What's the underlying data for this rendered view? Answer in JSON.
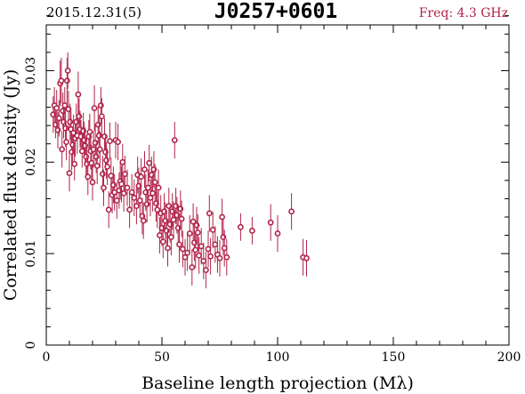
{
  "header": {
    "date": "2015.12.31(5)",
    "source": "J0257+0601",
    "frequency": "Freq: 4.3 GHz"
  },
  "colors": {
    "data": "#b0234a",
    "frame": "#000000"
  },
  "chart_data": {
    "type": "scatter",
    "title": "J0257+0601",
    "xlabel": "Baseline length projection (Mλ)",
    "ylabel": "Correlated flux density (Jy)",
    "xlim": [
      0,
      200
    ],
    "ylim": [
      0,
      0.035
    ],
    "xticks": [
      0,
      50,
      100,
      150,
      200
    ],
    "xtick_labels": [
      "0",
      "50",
      "100",
      "150",
      "200"
    ],
    "yticks": [
      0,
      0.01,
      0.02,
      0.03
    ],
    "ytick_labels": [
      "0",
      "0.01",
      "0.02",
      "0.03"
    ],
    "error_bars": true,
    "series": [
      {
        "points": [
          [
            3,
            0.0252,
            0.002
          ],
          [
            3.5,
            0.0262,
            0.002
          ],
          [
            4,
            0.0241,
            0.0015
          ],
          [
            4.5,
            0.0259,
            0.002
          ],
          [
            5,
            0.0235,
            0.002
          ],
          [
            5.5,
            0.0248,
            0.002
          ],
          [
            6,
            0.0286,
            0.0025
          ],
          [
            6.5,
            0.0289,
            0.0025
          ],
          [
            6.8,
            0.0214,
            0.002
          ],
          [
            7.2,
            0.0256,
            0.002
          ],
          [
            7.5,
            0.0244,
            0.0018
          ],
          [
            8,
            0.0262,
            0.002
          ],
          [
            8.3,
            0.0237,
            0.002
          ],
          [
            8.7,
            0.0222,
            0.002
          ],
          [
            9,
            0.0289,
            0.0025
          ],
          [
            9.3,
            0.03,
            0.002
          ],
          [
            9.6,
            0.0258,
            0.002
          ],
          [
            10,
            0.0188,
            0.002
          ],
          [
            10.3,
            0.0244,
            0.002
          ],
          [
            10.7,
            0.0236,
            0.002
          ],
          [
            11,
            0.0211,
            0.002
          ],
          [
            11.4,
            0.0219,
            0.002
          ],
          [
            11.8,
            0.0232,
            0.002
          ],
          [
            12.2,
            0.0198,
            0.0018
          ],
          [
            12.5,
            0.0226,
            0.002
          ],
          [
            13,
            0.0244,
            0.002
          ],
          [
            13.4,
            0.0229,
            0.002
          ],
          [
            13.8,
            0.0274,
            0.0025
          ],
          [
            14.2,
            0.025,
            0.002
          ],
          [
            14.6,
            0.0236,
            0.002
          ],
          [
            15,
            0.0228,
            0.0018
          ],
          [
            15.5,
            0.0212,
            0.0018
          ],
          [
            16,
            0.0234,
            0.002
          ],
          [
            16.4,
            0.0224,
            0.002
          ],
          [
            16.8,
            0.0218,
            0.002
          ],
          [
            17.2,
            0.0206,
            0.002
          ],
          [
            17.6,
            0.0198,
            0.0018
          ],
          [
            18,
            0.0184,
            0.002
          ],
          [
            18.4,
            0.0228,
            0.0018
          ],
          [
            18.8,
            0.0233,
            0.002
          ],
          [
            19.2,
            0.0212,
            0.002
          ],
          [
            19.6,
            0.0199,
            0.002
          ],
          [
            20,
            0.0178,
            0.002
          ],
          [
            20.4,
            0.0214,
            0.002
          ],
          [
            20.8,
            0.0259,
            0.0025
          ],
          [
            21.2,
            0.0221,
            0.002
          ],
          [
            21.6,
            0.0206,
            0.0018
          ],
          [
            22,
            0.0196,
            0.002
          ],
          [
            22.4,
            0.0241,
            0.002
          ],
          [
            22.8,
            0.0229,
            0.002
          ],
          [
            23.2,
            0.0214,
            0.002
          ],
          [
            23.6,
            0.0262,
            0.002
          ],
          [
            24,
            0.025,
            0.002
          ],
          [
            24.4,
            0.0187,
            0.002
          ],
          [
            24.8,
            0.0172,
            0.002
          ],
          [
            25.2,
            0.0228,
            0.002
          ],
          [
            25.6,
            0.0211,
            0.002
          ],
          [
            26,
            0.0202,
            0.002
          ],
          [
            26.4,
            0.0195,
            0.002
          ],
          [
            27,
            0.0148,
            0.002
          ],
          [
            27.5,
            0.0223,
            0.002
          ],
          [
            28,
            0.0185,
            0.002
          ],
          [
            28.5,
            0.0164,
            0.002
          ],
          [
            29,
            0.0175,
            0.002
          ],
          [
            29.5,
            0.0167,
            0.002
          ],
          [
            30,
            0.0224,
            0.002
          ],
          [
            30.5,
            0.0158,
            0.002
          ],
          [
            31,
            0.0222,
            0.002
          ],
          [
            31.5,
            0.0169,
            0.002
          ],
          [
            32,
            0.0179,
            0.002
          ],
          [
            32.5,
            0.0176,
            0.002
          ],
          [
            33,
            0.02,
            0.002
          ],
          [
            33.5,
            0.0166,
            0.002
          ],
          [
            34,
            0.0187,
            0.002
          ],
          [
            35,
            0.0172,
            0.002
          ],
          [
            36,
            0.0148,
            0.002
          ],
          [
            37,
            0.0167,
            0.002
          ],
          [
            38,
            0.0161,
            0.002
          ],
          [
            39,
            0.0152,
            0.002
          ],
          [
            39.5,
            0.0186,
            0.002
          ],
          [
            40,
            0.0174,
            0.002
          ],
          [
            40.5,
            0.0158,
            0.0018
          ],
          [
            41,
            0.0184,
            0.002
          ],
          [
            41.5,
            0.0141,
            0.002
          ],
          [
            42,
            0.0136,
            0.002
          ],
          [
            42.5,
            0.0192,
            0.002
          ],
          [
            43,
            0.0167,
            0.002
          ],
          [
            43.5,
            0.0154,
            0.002
          ],
          [
            44,
            0.0172,
            0.002
          ],
          [
            44.5,
            0.0199,
            0.002
          ],
          [
            45,
            0.0161,
            0.002
          ],
          [
            45.5,
            0.0186,
            0.002
          ],
          [
            46,
            0.0166,
            0.002
          ],
          [
            46.5,
            0.0192,
            0.002
          ],
          [
            47,
            0.0178,
            0.002
          ],
          [
            47.5,
            0.0155,
            0.002
          ],
          [
            48,
            0.0148,
            0.002
          ],
          [
            48.5,
            0.0172,
            0.002
          ],
          [
            49,
            0.012,
            0.002
          ],
          [
            49.5,
            0.0144,
            0.002
          ],
          [
            50,
            0.0128,
            0.002
          ],
          [
            50.5,
            0.0113,
            0.0018
          ],
          [
            51,
            0.0146,
            0.002
          ],
          [
            51.5,
            0.0136,
            0.002
          ],
          [
            52,
            0.0125,
            0.002
          ],
          [
            52.5,
            0.0106,
            0.002
          ],
          [
            53,
            0.0152,
            0.002
          ],
          [
            53.5,
            0.0132,
            0.002
          ],
          [
            54,
            0.0118,
            0.002
          ],
          [
            54.5,
            0.0146,
            0.002
          ],
          [
            55,
            0.0137,
            0.002
          ],
          [
            55.5,
            0.0224,
            0.002
          ],
          [
            56,
            0.0152,
            0.002
          ],
          [
            56.5,
            0.0142,
            0.002
          ],
          [
            57,
            0.0128,
            0.002
          ],
          [
            57.5,
            0.011,
            0.002
          ],
          [
            58,
            0.0149,
            0.002
          ],
          [
            58.5,
            0.0138,
            0.002
          ],
          [
            59,
            0.0105,
            0.002
          ],
          [
            60,
            0.0096,
            0.002
          ],
          [
            61,
            0.0101,
            0.002
          ],
          [
            62,
            0.0122,
            0.002
          ],
          [
            63,
            0.0085,
            0.002
          ],
          [
            63.5,
            0.0135,
            0.002
          ],
          [
            64,
            0.0112,
            0.002
          ],
          [
            64.5,
            0.0104,
            0.002
          ],
          [
            65,
            0.0131,
            0.002
          ],
          [
            65.5,
            0.0123,
            0.002
          ],
          [
            66,
            0.0098,
            0.002
          ],
          [
            67,
            0.0108,
            0.002
          ],
          [
            68,
            0.0092,
            0.002
          ],
          [
            69,
            0.0082,
            0.002
          ],
          [
            70,
            0.0105,
            0.002
          ],
          [
            70.5,
            0.0144,
            0.002
          ],
          [
            71,
            0.0097,
            0.002
          ],
          [
            72,
            0.0126,
            0.002
          ],
          [
            73,
            0.011,
            0.002
          ],
          [
            74,
            0.0099,
            0.002
          ],
          [
            75,
            0.0095,
            0.002
          ],
          [
            76,
            0.014,
            0.002
          ],
          [
            76.5,
            0.0118,
            0.002
          ],
          [
            77,
            0.0106,
            0.002
          ],
          [
            78,
            0.0096,
            0.002
          ],
          [
            84,
            0.0129,
            0.0015
          ],
          [
            89,
            0.0125,
            0.0015
          ],
          [
            97,
            0.0134,
            0.002
          ],
          [
            100,
            0.0122,
            0.002
          ],
          [
            106,
            0.0146,
            0.002
          ],
          [
            111,
            0.0096,
            0.002
          ],
          [
            112.5,
            0.0095,
            0.002
          ]
        ]
      }
    ]
  }
}
